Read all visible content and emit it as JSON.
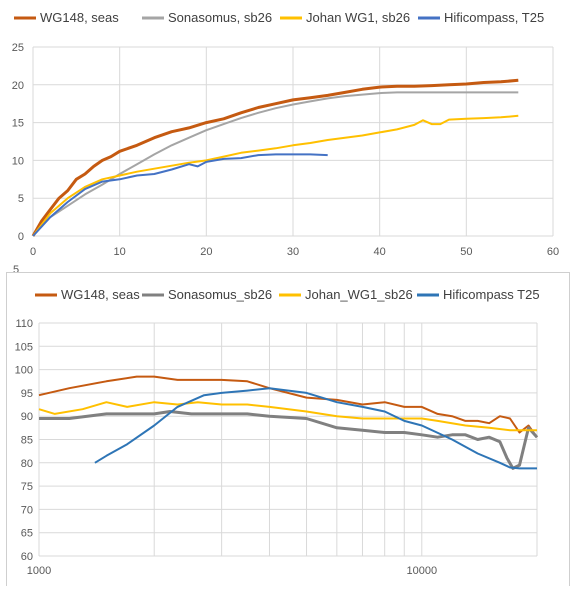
{
  "chart_data": [
    {
      "type": "line",
      "title": "",
      "xlabel": "",
      "ylabel": "",
      "xlim": [
        0,
        60
      ],
      "ylim": [
        0,
        25
      ],
      "xticks": [
        0,
        10,
        20,
        30,
        40,
        50,
        60
      ],
      "yticks": [
        0,
        5,
        10,
        15,
        20,
        25
      ],
      "grid": "vertical+horizontal",
      "legend": "top",
      "series": [
        {
          "name": "WG148, seas",
          "color": "#c55a11",
          "width": 3,
          "points": [
            [
              0,
              0
            ],
            [
              1,
              2
            ],
            [
              2,
              3.5
            ],
            [
              3,
              5
            ],
            [
              4,
              6
            ],
            [
              5,
              7.5
            ],
            [
              6,
              8.2
            ],
            [
              7,
              9.2
            ],
            [
              8,
              10
            ],
            [
              9,
              10.5
            ],
            [
              10,
              11.2
            ],
            [
              12,
              12
            ],
            [
              14,
              13
            ],
            [
              16,
              13.8
            ],
            [
              18,
              14.3
            ],
            [
              20,
              15
            ],
            [
              22,
              15.5
            ],
            [
              24,
              16.3
            ],
            [
              26,
              17
            ],
            [
              28,
              17.5
            ],
            [
              30,
              18
            ],
            [
              32,
              18.3
            ],
            [
              34,
              18.6
            ],
            [
              36,
              19
            ],
            [
              38,
              19.4
            ],
            [
              40,
              19.7
            ],
            [
              42,
              19.8
            ],
            [
              44,
              19.8
            ],
            [
              46,
              19.9
            ],
            [
              48,
              20
            ],
            [
              50,
              20.1
            ],
            [
              52,
              20.3
            ],
            [
              54,
              20.4
            ],
            [
              56,
              20.6
            ]
          ]
        },
        {
          "name": "Sonasomus, sb26",
          "color": "#a5a5a5",
          "width": 2,
          "points": [
            [
              0,
              0
            ],
            [
              2,
              2.5
            ],
            [
              4,
              4
            ],
            [
              6,
              5.5
            ],
            [
              8,
              6.8
            ],
            [
              10,
              8.2
            ],
            [
              12,
              9.5
            ],
            [
              14,
              10.8
            ],
            [
              16,
              12
            ],
            [
              18,
              13
            ],
            [
              20,
              14
            ],
            [
              22,
              14.8
            ],
            [
              24,
              15.6
            ],
            [
              26,
              16.3
            ],
            [
              28,
              16.9
            ],
            [
              30,
              17.4
            ],
            [
              32,
              17.8
            ],
            [
              34,
              18.2
            ],
            [
              36,
              18.5
            ],
            [
              38,
              18.7
            ],
            [
              40,
              18.9
            ],
            [
              42,
              19
            ],
            [
              46,
              19
            ],
            [
              50,
              19
            ],
            [
              56,
              19
            ]
          ]
        },
        {
          "name": "Johan WG1, sb26",
          "color": "#ffc000",
          "width": 2,
          "points": [
            [
              0,
              0
            ],
            [
              2,
              3
            ],
            [
              4,
              5
            ],
            [
              6,
              6.5
            ],
            [
              8,
              7.5
            ],
            [
              10,
              8
            ],
            [
              12,
              8.5
            ],
            [
              14,
              8.9
            ],
            [
              16,
              9.3
            ],
            [
              18,
              9.7
            ],
            [
              20,
              10
            ],
            [
              22,
              10.5
            ],
            [
              24,
              11
            ],
            [
              26,
              11.3
            ],
            [
              28,
              11.6
            ],
            [
              30,
              12
            ],
            [
              32,
              12.3
            ],
            [
              34,
              12.7
            ],
            [
              36,
              13
            ],
            [
              38,
              13.3
            ],
            [
              40,
              13.7
            ],
            [
              42,
              14.1
            ],
            [
              44,
              14.7
            ],
            [
              45,
              15.3
            ],
            [
              46,
              14.8
            ],
            [
              47,
              14.8
            ],
            [
              48,
              15.4
            ],
            [
              50,
              15.5
            ],
            [
              52,
              15.6
            ],
            [
              54,
              15.7
            ],
            [
              56,
              15.9
            ]
          ]
        },
        {
          "name": "Hificompass, T25",
          "color": "#4472c4",
          "width": 2,
          "points": [
            [
              0,
              0
            ],
            [
              2,
              2.5
            ],
            [
              4,
              4.5
            ],
            [
              6,
              6.2
            ],
            [
              8,
              7.2
            ],
            [
              10,
              7.5
            ],
            [
              12,
              8
            ],
            [
              14,
              8.2
            ],
            [
              16,
              8.8
            ],
            [
              18,
              9.5
            ],
            [
              19,
              9.2
            ],
            [
              20,
              9.8
            ],
            [
              22,
              10.2
            ],
            [
              24,
              10.3
            ],
            [
              26,
              10.7
            ],
            [
              28,
              10.8
            ],
            [
              30,
              10.8
            ],
            [
              32,
              10.8
            ],
            [
              34,
              10.7
            ]
          ]
        }
      ]
    },
    {
      "type": "line",
      "title": "",
      "xlabel": "",
      "ylabel": "",
      "xscale": "log",
      "xlim": [
        1000,
        20000
      ],
      "ylim": [
        60,
        110
      ],
      "xticks": [
        1000,
        10000
      ],
      "yticks": [
        60,
        65,
        70,
        75,
        80,
        85,
        90,
        95,
        100,
        105,
        110
      ],
      "grid": "log-vertical+horizontal",
      "legend": "top",
      "series": [
        {
          "name": "WG148, seas",
          "color": "#c55a11",
          "width": 2,
          "points": [
            [
              1000,
              94.5
            ],
            [
              1200,
              96
            ],
            [
              1500,
              97.5
            ],
            [
              1800,
              98.5
            ],
            [
              2000,
              98.5
            ],
            [
              2300,
              97.8
            ],
            [
              3000,
              97.8
            ],
            [
              3500,
              97.5
            ],
            [
              4000,
              96
            ],
            [
              5000,
              94
            ],
            [
              6000,
              93.5
            ],
            [
              7000,
              92.5
            ],
            [
              8000,
              93
            ],
            [
              9000,
              92
            ],
            [
              10000,
              92
            ],
            [
              11000,
              90.5
            ],
            [
              12000,
              90
            ],
            [
              13000,
              89
            ],
            [
              14000,
              89
            ],
            [
              15000,
              88.5
            ],
            [
              16000,
              90
            ],
            [
              17000,
              89.5
            ],
            [
              18000,
              86.5
            ],
            [
              19000,
              88
            ],
            [
              20000,
              85.5
            ]
          ]
        },
        {
          "name": "Sonasomus_sb26",
          "color": "#808080",
          "width": 3,
          "points": [
            [
              1000,
              89.5
            ],
            [
              1200,
              89.5
            ],
            [
              1500,
              90.5
            ],
            [
              1800,
              90.5
            ],
            [
              2000,
              90.5
            ],
            [
              2200,
              91
            ],
            [
              2500,
              90.5
            ],
            [
              3000,
              90.5
            ],
            [
              3500,
              90.5
            ],
            [
              4000,
              90
            ],
            [
              5000,
              89.5
            ],
            [
              6000,
              87.5
            ],
            [
              7000,
              87
            ],
            [
              8000,
              86.5
            ],
            [
              9000,
              86.5
            ],
            [
              10000,
              86
            ],
            [
              11000,
              85.5
            ],
            [
              12000,
              86
            ],
            [
              13000,
              86
            ],
            [
              14000,
              85
            ],
            [
              15000,
              85.5
            ],
            [
              16000,
              84.5
            ],
            [
              16700,
              81
            ],
            [
              17300,
              78.8
            ],
            [
              18000,
              79.5
            ],
            [
              19000,
              87.5
            ],
            [
              20000,
              85.5
            ]
          ]
        },
        {
          "name": "Johan_WG1_sb26",
          "color": "#ffc000",
          "width": 2,
          "points": [
            [
              1000,
              91.5
            ],
            [
              1100,
              90.5
            ],
            [
              1300,
              91.5
            ],
            [
              1500,
              93
            ],
            [
              1700,
              92
            ],
            [
              2000,
              93
            ],
            [
              2300,
              92.5
            ],
            [
              2600,
              93
            ],
            [
              3000,
              92.5
            ],
            [
              3500,
              92.5
            ],
            [
              4000,
              92
            ],
            [
              5000,
              91
            ],
            [
              6000,
              90
            ],
            [
              7000,
              89.5
            ],
            [
              8000,
              89.5
            ],
            [
              10000,
              89.5
            ],
            [
              11000,
              89
            ],
            [
              13000,
              88
            ],
            [
              15000,
              87.5
            ],
            [
              17000,
              87
            ],
            [
              20000,
              87
            ]
          ]
        },
        {
          "name": "Hificompass T25",
          "color": "#2e75b6",
          "width": 2,
          "points": [
            [
              1400,
              80
            ],
            [
              1500,
              81.5
            ],
            [
              1700,
              84
            ],
            [
              2000,
              88
            ],
            [
              2300,
              92
            ],
            [
              2700,
              94.5
            ],
            [
              3000,
              95
            ],
            [
              3500,
              95.5
            ],
            [
              4000,
              96
            ],
            [
              5000,
              95
            ],
            [
              6000,
              93
            ],
            [
              7000,
              92
            ],
            [
              8000,
              91
            ],
            [
              9000,
              89
            ],
            [
              10000,
              88
            ],
            [
              12000,
              85
            ],
            [
              14000,
              82
            ],
            [
              16000,
              80
            ],
            [
              17000,
              79
            ],
            [
              18000,
              78.8
            ],
            [
              20000,
              78.8
            ]
          ]
        }
      ]
    }
  ],
  "ui": {
    "top_partial_tick": "5"
  }
}
